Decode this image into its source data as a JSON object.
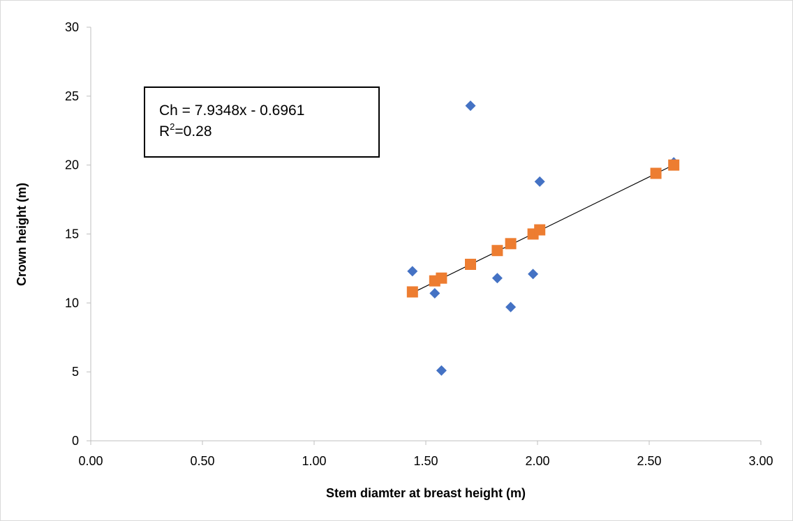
{
  "chart_data": {
    "type": "scatter",
    "title": "",
    "xlabel": "Stem diamter at breast height (m)",
    "ylabel": "Crown height (m)",
    "xlim": [
      0,
      3
    ],
    "ylim": [
      0,
      30
    ],
    "x_ticks": [
      "0.00",
      "0.50",
      "1.00",
      "1.50",
      "2.00",
      "2.50",
      "3.00"
    ],
    "x_tick_values": [
      0,
      0.5,
      1.0,
      1.5,
      2.0,
      2.5,
      3.0
    ],
    "y_ticks": [
      "0",
      "5",
      "10",
      "15",
      "20",
      "25",
      "30"
    ],
    "y_tick_values": [
      0,
      5,
      10,
      15,
      20,
      25,
      30
    ],
    "grid": false,
    "legend": "none",
    "series": [
      {
        "marker": "diamond",
        "color": "#4472C4",
        "points": [
          {
            "x": 1.44,
            "y": 12.3
          },
          {
            "x": 1.54,
            "y": 10.7
          },
          {
            "x": 1.57,
            "y": 5.1
          },
          {
            "x": 1.7,
            "y": 24.3
          },
          {
            "x": 1.82,
            "y": 11.8
          },
          {
            "x": 1.88,
            "y": 9.7
          },
          {
            "x": 1.98,
            "y": 12.1
          },
          {
            "x": 2.01,
            "y": 18.8
          },
          {
            "x": 2.61,
            "y": 20.2
          }
        ]
      },
      {
        "marker": "square",
        "color": "#ED7D31",
        "points": [
          {
            "x": 1.44,
            "y": 10.8
          },
          {
            "x": 1.54,
            "y": 11.6
          },
          {
            "x": 1.57,
            "y": 11.8
          },
          {
            "x": 1.7,
            "y": 12.8
          },
          {
            "x": 1.82,
            "y": 13.8
          },
          {
            "x": 1.88,
            "y": 14.3
          },
          {
            "x": 1.98,
            "y": 15.0
          },
          {
            "x": 2.01,
            "y": 15.3
          },
          {
            "x": 2.53,
            "y": 19.4
          },
          {
            "x": 2.61,
            "y": 20.0
          }
        ]
      }
    ],
    "trendline": {
      "color": "#000000",
      "slope": 7.9348,
      "intercept": -0.6961,
      "x_start": 1.44,
      "x_end": 2.61
    },
    "annotation": {
      "equation": "Ch = 7.9348x - 0.6961",
      "r2_prefix": "R",
      "r2_sup": "2",
      "r2_value": "=0.28"
    }
  }
}
